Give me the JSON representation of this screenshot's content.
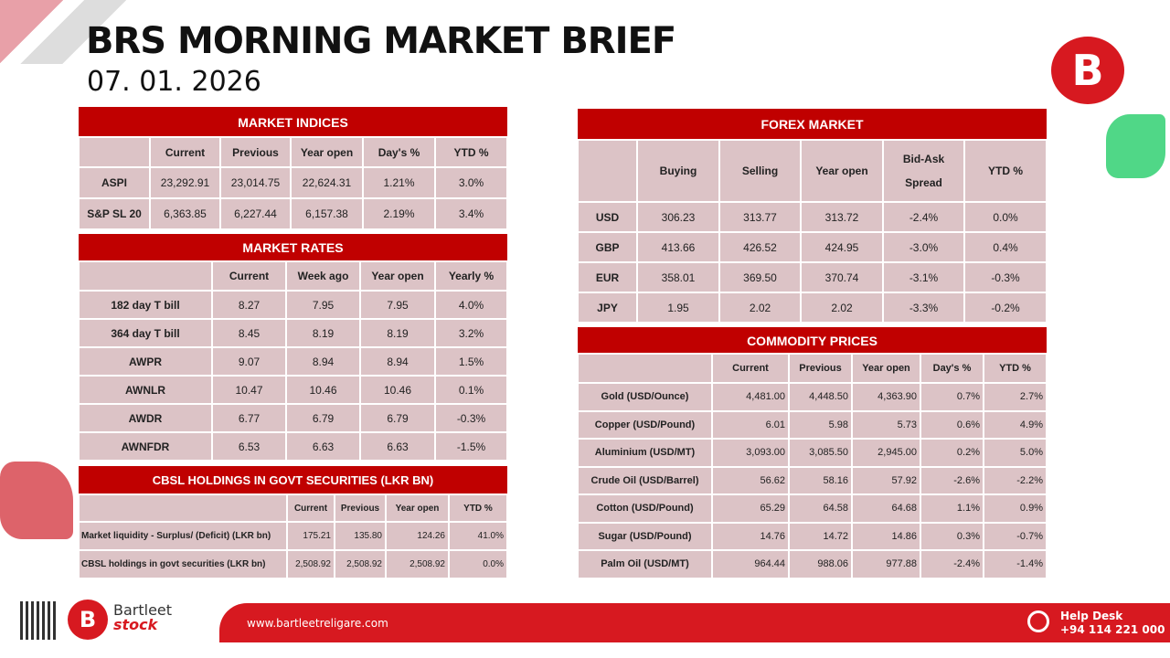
{
  "header": {
    "title": "BRS MORNING MARKET BRIEF",
    "date": "07. 01. 2026"
  },
  "colors": {
    "brand_red": "#c00000",
    "cell_bg": "#dcc3c6"
  },
  "market_indices": {
    "title": "MARKET INDICES",
    "columns": [
      "",
      "Current",
      "Previous",
      "Year open",
      "Day's %",
      "YTD %"
    ],
    "rows": [
      [
        "ASPI",
        "23,292.91",
        "23,014.75",
        "22,624.31",
        "1.21%",
        "3.0%"
      ],
      [
        "S&P SL 20",
        "6,363.85",
        "6,227.44",
        "6,157.38",
        "2.19%",
        "3.4%"
      ]
    ]
  },
  "market_rates": {
    "title": "MARKET RATES",
    "columns": [
      "",
      "Current",
      "Week ago",
      "Year open",
      "Yearly %"
    ],
    "rows": [
      [
        "182 day T bill",
        "8.27",
        "7.95",
        "7.95",
        "4.0%"
      ],
      [
        "364 day T bill",
        "8.45",
        "8.19",
        "8.19",
        "3.2%"
      ],
      [
        "AWPR",
        "9.07",
        "8.94",
        "8.94",
        "1.5%"
      ],
      [
        "AWNLR",
        "10.47",
        "10.46",
        "10.46",
        "0.1%"
      ],
      [
        "AWDR",
        "6.77",
        "6.79",
        "6.79",
        "-0.3%"
      ],
      [
        "AWNFDR",
        "6.53",
        "6.63",
        "6.63",
        "-1.5%"
      ]
    ]
  },
  "cbsl": {
    "title": "CBSL HOLDINGS IN GOVT SECURITIES (LKR BN)",
    "columns": [
      "",
      "Current",
      "Previous",
      "Year open",
      "YTD %"
    ],
    "rows": [
      [
        "Market liquidity - Surplus/ (Deficit) (LKR bn)",
        "175.21",
        "135.80",
        "124.26",
        "41.0%"
      ],
      [
        "CBSL holdings in govt securities (LKR bn)",
        "2,508.92",
        "2,508.92",
        "2,508.92",
        "0.0%"
      ]
    ]
  },
  "forex": {
    "title": "FOREX MARKET",
    "columns": [
      "",
      "Buying",
      "Selling",
      "Year open",
      "Bid-Ask Spread",
      "YTD %"
    ],
    "rows": [
      [
        "USD",
        "306.23",
        "313.77",
        "313.72",
        "-2.4%",
        "0.0%"
      ],
      [
        "GBP",
        "413.66",
        "426.52",
        "424.95",
        "-3.0%",
        "0.4%"
      ],
      [
        "EUR",
        "358.01",
        "369.50",
        "370.74",
        "-3.1%",
        "-0.3%"
      ],
      [
        "JPY",
        "1.95",
        "2.02",
        "2.02",
        "-3.3%",
        "-0.2%"
      ]
    ]
  },
  "commodities": {
    "title": "COMMODITY PRICES",
    "columns": [
      "",
      "Current",
      "Previous",
      "Year open",
      "Day's %",
      "YTD %"
    ],
    "rows": [
      [
        "Gold (USD/Ounce)",
        "4,481.00",
        "4,448.50",
        "4,363.90",
        "0.7%",
        "2.7%"
      ],
      [
        "Copper (USD/Pound)",
        "6.01",
        "5.98",
        "5.73",
        "0.6%",
        "4.9%"
      ],
      [
        "Aluminium (USD/MT)",
        "3,093.00",
        "3,085.50",
        "2,945.00",
        "0.2%",
        "5.0%"
      ],
      [
        "Crude Oil (USD/Barrel)",
        "56.62",
        "58.16",
        "57.92",
        "-2.6%",
        "-2.2%"
      ],
      [
        "Cotton (USD/Pound)",
        "65.29",
        "64.58",
        "64.68",
        "1.1%",
        "0.9%"
      ],
      [
        "Sugar (USD/Pound)",
        "14.76",
        "14.72",
        "14.86",
        "0.3%",
        "-0.7%"
      ],
      [
        "Palm Oil (USD/MT)",
        "964.44",
        "988.06",
        "977.88",
        "-2.4%",
        "-1.4%"
      ]
    ]
  },
  "footer": {
    "brand_line1": "Bartleet",
    "brand_line2": "stock",
    "url": "www.bartleetreligare.com",
    "help_label": "Help Desk",
    "help_phone": "+94 114 221 000",
    "logo_icon": "bartleet-b-logo",
    "help_icon": "headset-icon",
    "qr_icon": "qr-code"
  }
}
